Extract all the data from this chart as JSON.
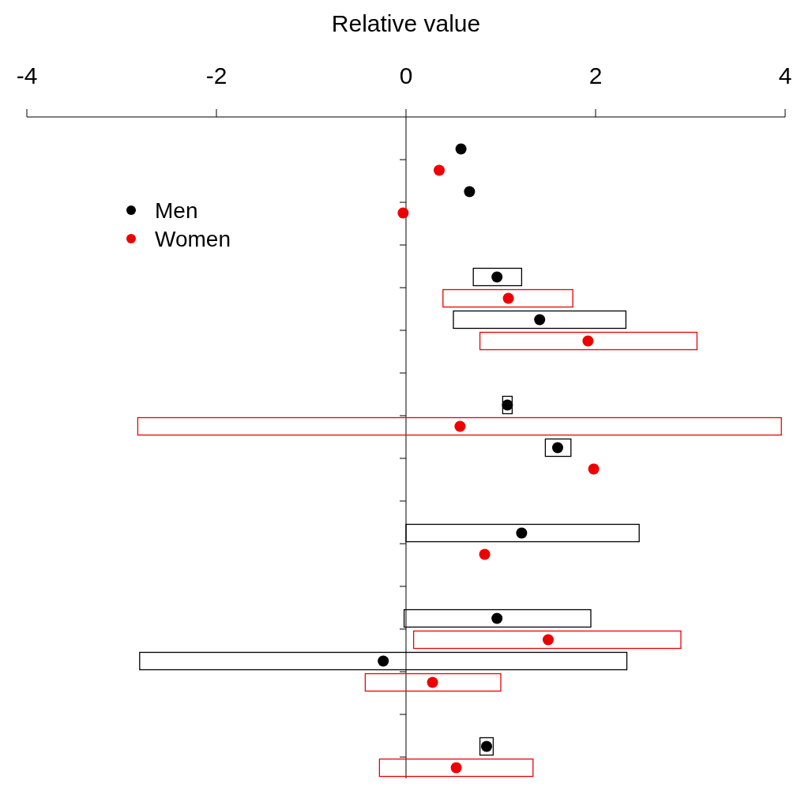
{
  "chart_data": {
    "type": "scatter",
    "orientation": "horizontal",
    "xlabel": "Relative value",
    "xlim": [
      -4,
      4
    ],
    "xticks": [
      -4,
      -2,
      0,
      2,
      4
    ],
    "tick_labels": "x",
    "legend": "top left",
    "marker": "circle",
    "categories": [
      null,
      null,
      null,
      null,
      null,
      null,
      null,
      null,
      null,
      null,
      null,
      null,
      null,
      null,
      null,
      null,
      null,
      null,
      null,
      null,
      null,
      null,
      null,
      null,
      null,
      null,
      null,
      null,
      null,
      null,
      null
    ],
    "series": [
      {
        "type": "bar",
        "color": "#000000",
        "base": [
          null,
          null,
          null,
          null,
          null,
          null,
          null,
          0.71,
          null,
          0.5,
          null,
          null,
          null,
          1.02,
          null,
          1.47,
          null,
          null,
          null,
          0,
          null,
          null,
          null,
          -0.02,
          null,
          -2.81,
          null,
          null,
          null,
          0.78,
          null
        ],
        "values": [
          null,
          null,
          null,
          null,
          null,
          null,
          null,
          0.51,
          null,
          1.82,
          null,
          null,
          null,
          0.1,
          null,
          0.27,
          null,
          null,
          null,
          2.46,
          null,
          null,
          null,
          1.97,
          null,
          5.14,
          null,
          null,
          null,
          0.14,
          null
        ]
      },
      {
        "type": "bar",
        "color": "#ee0000",
        "base": [
          null,
          null,
          null,
          null,
          null,
          null,
          null,
          null,
          0.39,
          null,
          0.78,
          null,
          null,
          null,
          -2.83,
          null,
          null,
          null,
          null,
          null,
          null,
          null,
          null,
          null,
          0.08,
          null,
          -0.43,
          null,
          null,
          null,
          -0.28
        ],
        "values": [
          null,
          null,
          null,
          null,
          null,
          null,
          null,
          null,
          1.37,
          null,
          2.29,
          null,
          null,
          null,
          6.79,
          null,
          null,
          null,
          null,
          null,
          null,
          null,
          null,
          null,
          2.82,
          null,
          1.43,
          null,
          null,
          null,
          1.62
        ]
      },
      {
        "name": "Men",
        "color": "#000000",
        "values": [
          null,
          0.58,
          null,
          0.67,
          null,
          null,
          null,
          0.96,
          null,
          1.41,
          null,
          null,
          null,
          1.07,
          null,
          1.6,
          null,
          null,
          null,
          1.22,
          null,
          null,
          null,
          0.96,
          null,
          -0.24,
          null,
          null,
          null,
          0.85,
          null
        ]
      },
      {
        "name": "Women",
        "color": "#ee0000",
        "values": [
          null,
          null,
          0.35,
          null,
          -0.03,
          null,
          null,
          null,
          1.08,
          null,
          1.92,
          null,
          null,
          null,
          0.57,
          null,
          1.98,
          null,
          null,
          null,
          0.83,
          null,
          null,
          null,
          1.5,
          null,
          0.28,
          null,
          null,
          null,
          0.53
        ]
      }
    ]
  }
}
